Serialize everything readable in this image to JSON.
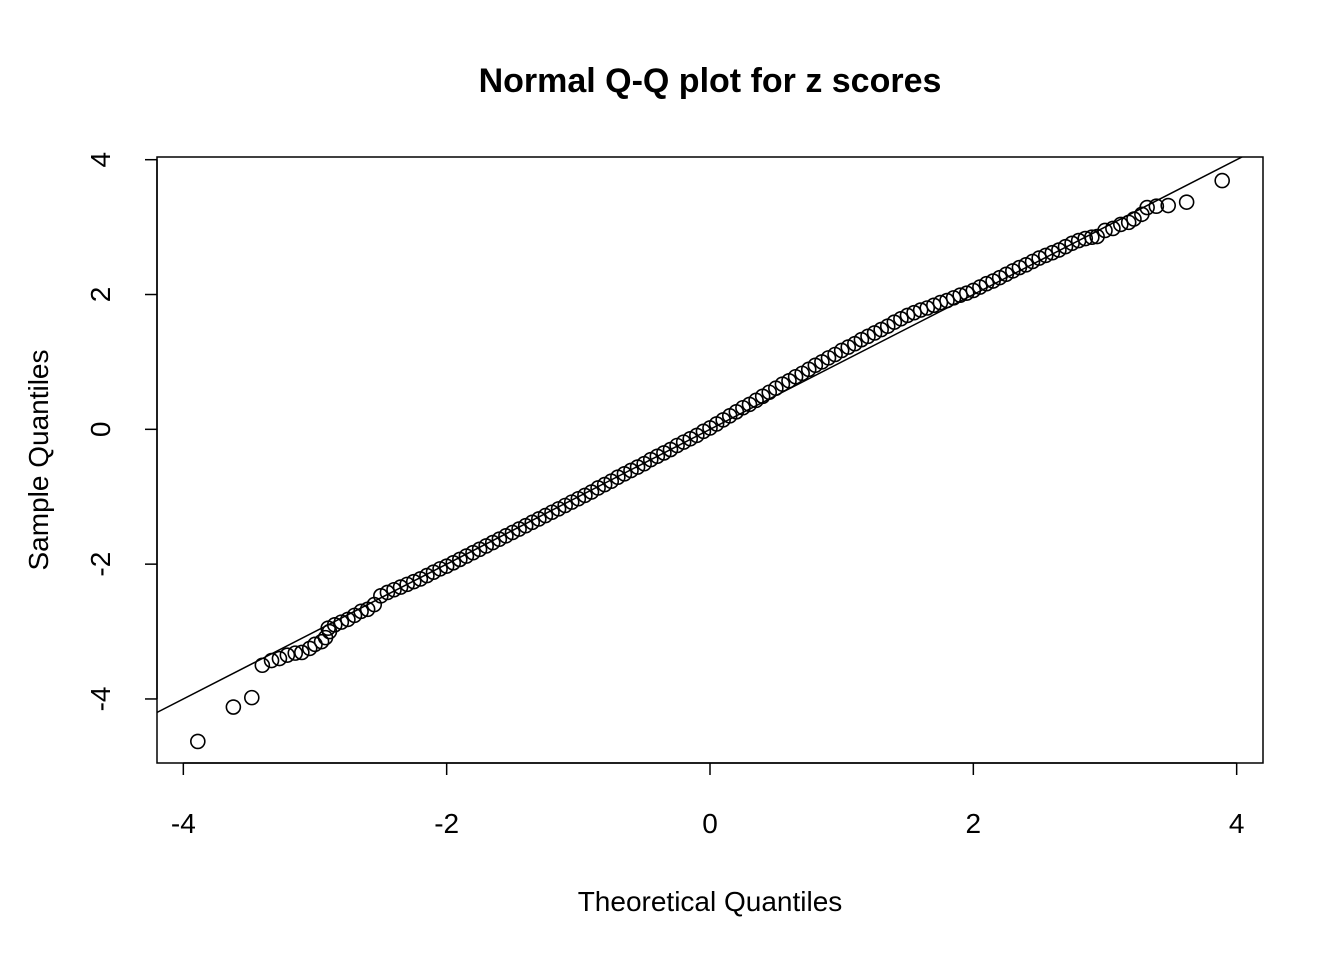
{
  "chart_data": {
    "type": "scatter",
    "title": "Normal Q-Q plot for z scores",
    "xlabel": "Theoretical Quantiles",
    "ylabel": "Sample Quantiles",
    "xlim": [
      -4.2,
      4.2
    ],
    "ylim": [
      -4.95,
      4.04
    ],
    "xticks": [
      -4,
      -2,
      0,
      2,
      4
    ],
    "yticks": [
      -4,
      -2,
      0,
      2,
      4
    ],
    "grid": false,
    "marker": "open-circle",
    "color": "#000000",
    "reference_line": {
      "slope": 1.0,
      "intercept": 0.0
    },
    "points": [
      [
        -3.89,
        -4.63
      ],
      [
        -3.62,
        -4.12
      ],
      [
        -3.48,
        -3.98
      ],
      [
        -3.4,
        -3.5
      ],
      [
        -3.33,
        -3.43
      ],
      [
        -3.27,
        -3.4
      ],
      [
        -3.21,
        -3.35
      ],
      [
        -3.15,
        -3.32
      ],
      [
        -3.1,
        -3.31
      ],
      [
        -3.04,
        -3.25
      ],
      [
        -3.0,
        -3.19
      ],
      [
        -2.95,
        -3.15
      ],
      [
        -2.92,
        -3.09
      ],
      [
        -2.89,
        -3.0
      ],
      [
        -2.9,
        -2.95
      ],
      [
        -2.85,
        -2.9
      ],
      [
        -2.8,
        -2.86
      ],
      [
        -2.75,
        -2.82
      ],
      [
        -2.7,
        -2.76
      ],
      [
        -2.65,
        -2.7
      ],
      [
        -2.6,
        -2.67
      ],
      [
        -2.55,
        -2.6
      ],
      [
        -2.5,
        -2.47
      ],
      [
        -2.45,
        -2.42
      ],
      [
        -2.4,
        -2.38
      ],
      [
        -2.35,
        -2.34
      ],
      [
        -2.3,
        -2.3
      ],
      [
        -2.25,
        -2.26
      ],
      [
        -2.2,
        -2.22
      ],
      [
        -2.15,
        -2.17
      ],
      [
        -2.1,
        -2.12
      ],
      [
        -2.05,
        -2.07
      ],
      [
        -2.0,
        -2.03
      ],
      [
        -1.95,
        -1.98
      ],
      [
        -1.9,
        -1.93
      ],
      [
        -1.85,
        -1.88
      ],
      [
        -1.8,
        -1.83
      ],
      [
        -1.75,
        -1.78
      ],
      [
        -1.7,
        -1.73
      ],
      [
        -1.65,
        -1.68
      ],
      [
        -1.6,
        -1.63
      ],
      [
        -1.55,
        -1.58
      ],
      [
        -1.5,
        -1.53
      ],
      [
        -1.45,
        -1.48
      ],
      [
        -1.4,
        -1.43
      ],
      [
        -1.35,
        -1.38
      ],
      [
        -1.3,
        -1.33
      ],
      [
        -1.25,
        -1.28
      ],
      [
        -1.2,
        -1.23
      ],
      [
        -1.15,
        -1.18
      ],
      [
        -1.1,
        -1.13
      ],
      [
        -1.05,
        -1.08
      ],
      [
        -1.0,
        -1.03
      ],
      [
        -0.95,
        -0.98
      ],
      [
        -0.9,
        -0.93
      ],
      [
        -0.85,
        -0.87
      ],
      [
        -0.8,
        -0.82
      ],
      [
        -0.75,
        -0.77
      ],
      [
        -0.7,
        -0.71
      ],
      [
        -0.65,
        -0.66
      ],
      [
        -0.6,
        -0.61
      ],
      [
        -0.55,
        -0.56
      ],
      [
        -0.5,
        -0.51
      ],
      [
        -0.45,
        -0.45
      ],
      [
        -0.4,
        -0.4
      ],
      [
        -0.35,
        -0.35
      ],
      [
        -0.3,
        -0.3
      ],
      [
        -0.25,
        -0.24
      ],
      [
        -0.2,
        -0.19
      ],
      [
        -0.15,
        -0.14
      ],
      [
        -0.1,
        -0.09
      ],
      [
        -0.05,
        -0.03
      ],
      [
        0.0,
        0.02
      ],
      [
        0.05,
        0.08
      ],
      [
        0.1,
        0.14
      ],
      [
        0.15,
        0.2
      ],
      [
        0.2,
        0.26
      ],
      [
        0.25,
        0.32
      ],
      [
        0.3,
        0.37
      ],
      [
        0.35,
        0.43
      ],
      [
        0.4,
        0.49
      ],
      [
        0.45,
        0.55
      ],
      [
        0.5,
        0.61
      ],
      [
        0.55,
        0.67
      ],
      [
        0.6,
        0.72
      ],
      [
        0.65,
        0.78
      ],
      [
        0.7,
        0.83
      ],
      [
        0.75,
        0.89
      ],
      [
        0.8,
        0.95
      ],
      [
        0.85,
        1.0
      ],
      [
        0.9,
        1.06
      ],
      [
        0.95,
        1.11
      ],
      [
        1.0,
        1.17
      ],
      [
        1.05,
        1.22
      ],
      [
        1.1,
        1.27
      ],
      [
        1.15,
        1.33
      ],
      [
        1.2,
        1.38
      ],
      [
        1.25,
        1.43
      ],
      [
        1.3,
        1.48
      ],
      [
        1.35,
        1.53
      ],
      [
        1.4,
        1.59
      ],
      [
        1.45,
        1.64
      ],
      [
        1.5,
        1.69
      ],
      [
        1.55,
        1.73
      ],
      [
        1.6,
        1.77
      ],
      [
        1.65,
        1.8
      ],
      [
        1.7,
        1.84
      ],
      [
        1.75,
        1.88
      ],
      [
        1.8,
        1.91
      ],
      [
        1.85,
        1.95
      ],
      [
        1.9,
        1.99
      ],
      [
        1.95,
        2.02
      ],
      [
        2.0,
        2.06
      ],
      [
        2.05,
        2.11
      ],
      [
        2.1,
        2.16
      ],
      [
        2.15,
        2.2
      ],
      [
        2.2,
        2.25
      ],
      [
        2.25,
        2.3
      ],
      [
        2.3,
        2.35
      ],
      [
        2.35,
        2.4
      ],
      [
        2.4,
        2.44
      ],
      [
        2.45,
        2.49
      ],
      [
        2.5,
        2.54
      ],
      [
        2.55,
        2.58
      ],
      [
        2.6,
        2.62
      ],
      [
        2.65,
        2.66
      ],
      [
        2.7,
        2.71
      ],
      [
        2.75,
        2.76
      ],
      [
        2.8,
        2.8
      ],
      [
        2.85,
        2.83
      ],
      [
        2.9,
        2.85
      ],
      [
        2.94,
        2.86
      ],
      [
        3.0,
        2.95
      ],
      [
        3.06,
        2.98
      ],
      [
        3.12,
        3.04
      ],
      [
        3.18,
        3.07
      ],
      [
        3.22,
        3.12
      ],
      [
        3.28,
        3.19
      ],
      [
        3.32,
        3.29
      ],
      [
        3.39,
        3.31
      ],
      [
        3.48,
        3.32
      ],
      [
        3.62,
        3.37
      ],
      [
        3.89,
        3.69
      ]
    ]
  }
}
